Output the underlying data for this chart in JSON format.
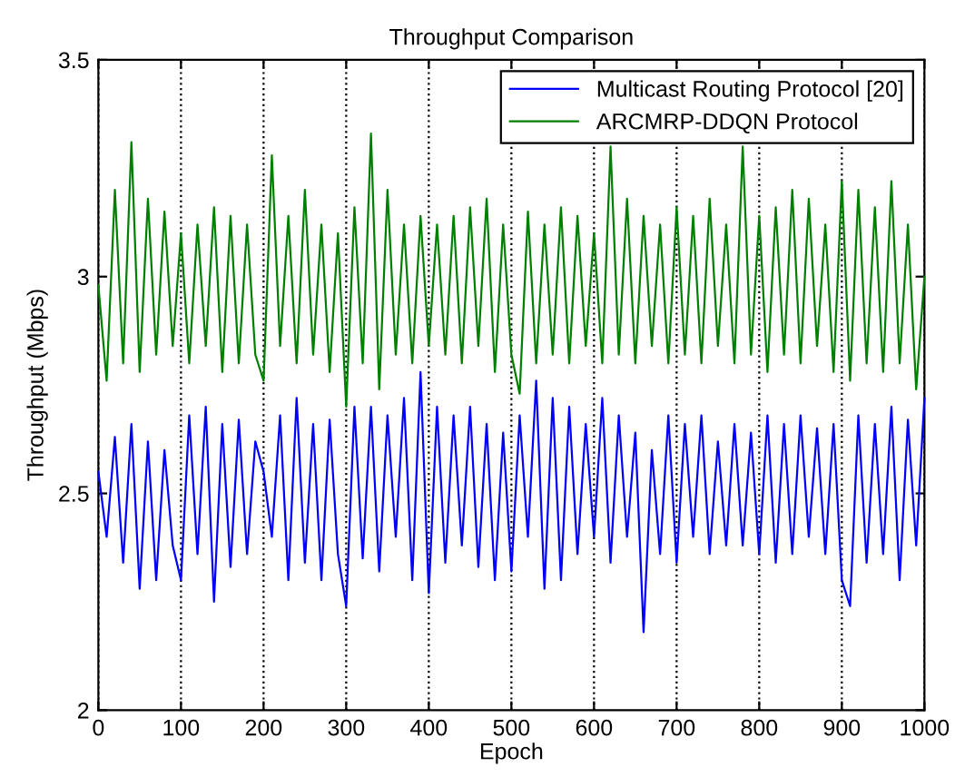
{
  "chart_data": {
    "type": "line",
    "title": "Throughput Comparison",
    "xlabel": "Epoch",
    "ylabel": "Throughput (Mbps)",
    "x": [
      0,
      10,
      20,
      30,
      40,
      50,
      60,
      70,
      80,
      90,
      100,
      110,
      120,
      130,
      140,
      150,
      160,
      170,
      180,
      190,
      200,
      210,
      220,
      230,
      240,
      250,
      260,
      270,
      280,
      290,
      300,
      310,
      320,
      330,
      340,
      350,
      360,
      370,
      380,
      390,
      400,
      410,
      420,
      430,
      440,
      450,
      460,
      470,
      480,
      490,
      500,
      510,
      520,
      530,
      540,
      550,
      560,
      570,
      580,
      590,
      600,
      610,
      620,
      630,
      640,
      650,
      660,
      670,
      680,
      690,
      700,
      710,
      720,
      730,
      740,
      750,
      760,
      770,
      780,
      790,
      800,
      810,
      820,
      830,
      840,
      850,
      860,
      870,
      880,
      890,
      900,
      910,
      920,
      930,
      940,
      950,
      960,
      970,
      980,
      990,
      1000
    ],
    "series": [
      {
        "name": "Multicast Routing Protocol [20]",
        "color": "#0000ff",
        "values": [
          2.55,
          2.4,
          2.63,
          2.34,
          2.66,
          2.28,
          2.62,
          2.3,
          2.6,
          2.38,
          2.3,
          2.68,
          2.36,
          2.7,
          2.25,
          2.66,
          2.33,
          2.67,
          2.36,
          2.62,
          2.55,
          2.4,
          2.68,
          2.3,
          2.72,
          2.34,
          2.66,
          2.3,
          2.67,
          2.36,
          2.24,
          2.7,
          2.35,
          2.7,
          2.32,
          2.68,
          2.4,
          2.72,
          2.3,
          2.78,
          2.27,
          2.7,
          2.34,
          2.68,
          2.38,
          2.7,
          2.33,
          2.66,
          2.3,
          2.64,
          2.32,
          2.68,
          2.4,
          2.76,
          2.28,
          2.72,
          2.3,
          2.7,
          2.36,
          2.66,
          2.4,
          2.72,
          2.34,
          2.68,
          2.4,
          2.64,
          2.18,
          2.6,
          2.36,
          2.68,
          2.34,
          2.66,
          2.4,
          2.68,
          2.36,
          2.62,
          2.38,
          2.66,
          2.38,
          2.64,
          2.36,
          2.68,
          2.34,
          2.66,
          2.36,
          2.68,
          2.4,
          2.65,
          2.36,
          2.66,
          2.3,
          2.24,
          2.68,
          2.34,
          2.66,
          2.36,
          2.7,
          2.3,
          2.67,
          2.38,
          2.72
        ]
      },
      {
        "name": "ARCMRP-DDQN Protocol",
        "color": "#008000",
        "values": [
          2.98,
          2.76,
          3.2,
          2.8,
          3.31,
          2.78,
          3.18,
          2.82,
          3.15,
          2.84,
          3.1,
          2.8,
          3.12,
          2.84,
          3.16,
          2.78,
          3.14,
          2.8,
          3.12,
          2.82,
          2.76,
          3.28,
          2.84,
          3.14,
          2.8,
          3.2,
          2.82,
          3.12,
          2.78,
          3.1,
          2.7,
          3.16,
          2.8,
          3.33,
          2.74,
          3.2,
          2.82,
          3.12,
          2.8,
          3.14,
          2.84,
          3.12,
          2.82,
          3.14,
          2.8,
          3.16,
          2.84,
          3.18,
          2.78,
          3.12,
          2.82,
          2.73,
          3.15,
          2.8,
          3.12,
          2.82,
          3.16,
          2.8,
          3.14,
          2.84,
          3.1,
          2.8,
          3.3,
          2.82,
          3.18,
          2.8,
          3.14,
          2.84,
          3.12,
          2.8,
          3.16,
          2.82,
          3.14,
          2.8,
          3.18,
          2.84,
          3.12,
          2.8,
          3.3,
          2.82,
          3.14,
          2.78,
          3.16,
          2.82,
          3.2,
          2.8,
          3.18,
          2.84,
          3.12,
          2.78,
          3.22,
          2.76,
          3.2,
          2.8,
          3.16,
          2.78,
          3.22,
          2.8,
          3.12,
          2.74,
          3.0
        ]
      }
    ],
    "xlim": [
      0,
      1000
    ],
    "ylim": [
      2,
      3.5
    ],
    "xticks": [
      0,
      100,
      200,
      300,
      400,
      500,
      600,
      700,
      800,
      900,
      1000
    ],
    "yticks": [
      2,
      2.5,
      3,
      3.5
    ],
    "grid": "x",
    "legend": "top right",
    "marker": "none",
    "line_style": "solid"
  }
}
